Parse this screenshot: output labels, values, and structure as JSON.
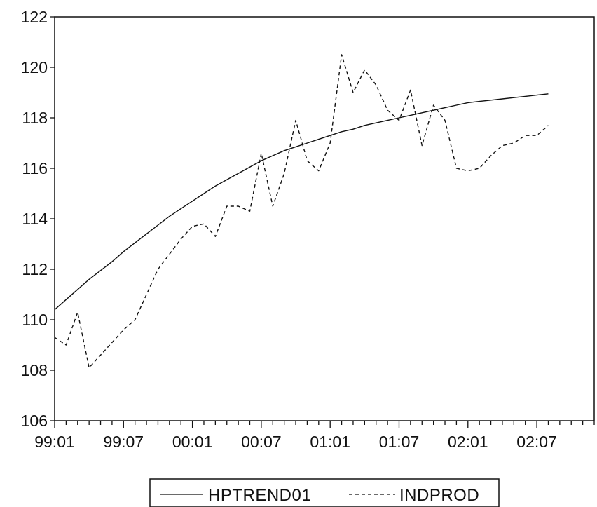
{
  "chart_data": {
    "type": "line",
    "title": "",
    "xlabel": "",
    "ylabel": "",
    "ylim": [
      106,
      122
    ],
    "yticks": [
      106,
      108,
      110,
      112,
      114,
      116,
      118,
      120,
      122
    ],
    "x_tick_labels": [
      "99:01",
      "99:07",
      "00:01",
      "00:07",
      "01:01",
      "01:07",
      "02:01",
      "02:07"
    ],
    "x_tick_positions": [
      0,
      6,
      12,
      18,
      24,
      30,
      36,
      42
    ],
    "x_axis_months": 47,
    "x": [
      "99:01",
      "99:02",
      "99:03",
      "99:04",
      "99:05",
      "99:06",
      "99:07",
      "99:08",
      "99:09",
      "99:10",
      "99:11",
      "99:12",
      "00:01",
      "00:02",
      "00:03",
      "00:04",
      "00:05",
      "00:06",
      "00:07",
      "00:08",
      "00:09",
      "00:10",
      "00:11",
      "00:12",
      "01:01",
      "01:02",
      "01:03",
      "01:04",
      "01:05",
      "01:06",
      "01:07",
      "01:08",
      "01:09",
      "01:10",
      "01:11",
      "01:12",
      "02:01",
      "02:02",
      "02:03",
      "02:04",
      "02:05",
      "02:06",
      "02:07",
      "02:08"
    ],
    "grid": false,
    "legend_position": "bottom-center",
    "series": [
      {
        "name": "HPTREND01",
        "style": "solid",
        "color": "#111111",
        "values": [
          110.4,
          110.8,
          111.2,
          111.6,
          111.95,
          112.3,
          112.7,
          113.05,
          113.4,
          113.75,
          114.1,
          114.4,
          114.7,
          115.0,
          115.3,
          115.55,
          115.8,
          116.05,
          116.3,
          116.5,
          116.7,
          116.85,
          117.0,
          117.15,
          117.3,
          117.45,
          117.55,
          117.7,
          117.8,
          117.9,
          118.0,
          118.1,
          118.2,
          118.3,
          118.4,
          118.5,
          118.6,
          118.65,
          118.7,
          118.75,
          118.8,
          118.85,
          118.9,
          118.95
        ]
      },
      {
        "name": "INDPROD",
        "style": "dashed",
        "color": "#111111",
        "values": [
          109.3,
          109.0,
          110.3,
          108.1,
          108.6,
          109.1,
          109.6,
          110.0,
          111.0,
          112.0,
          112.6,
          113.2,
          113.7,
          113.8,
          113.3,
          114.5,
          114.5,
          114.3,
          116.6,
          114.5,
          115.8,
          117.9,
          116.3,
          115.9,
          117.0,
          120.5,
          119.0,
          119.9,
          119.3,
          118.3,
          117.9,
          119.1,
          116.9,
          118.5,
          117.9,
          116.0,
          115.9,
          116.0,
          116.5,
          116.9,
          117.0,
          117.3,
          117.3,
          117.7
        ]
      }
    ]
  }
}
